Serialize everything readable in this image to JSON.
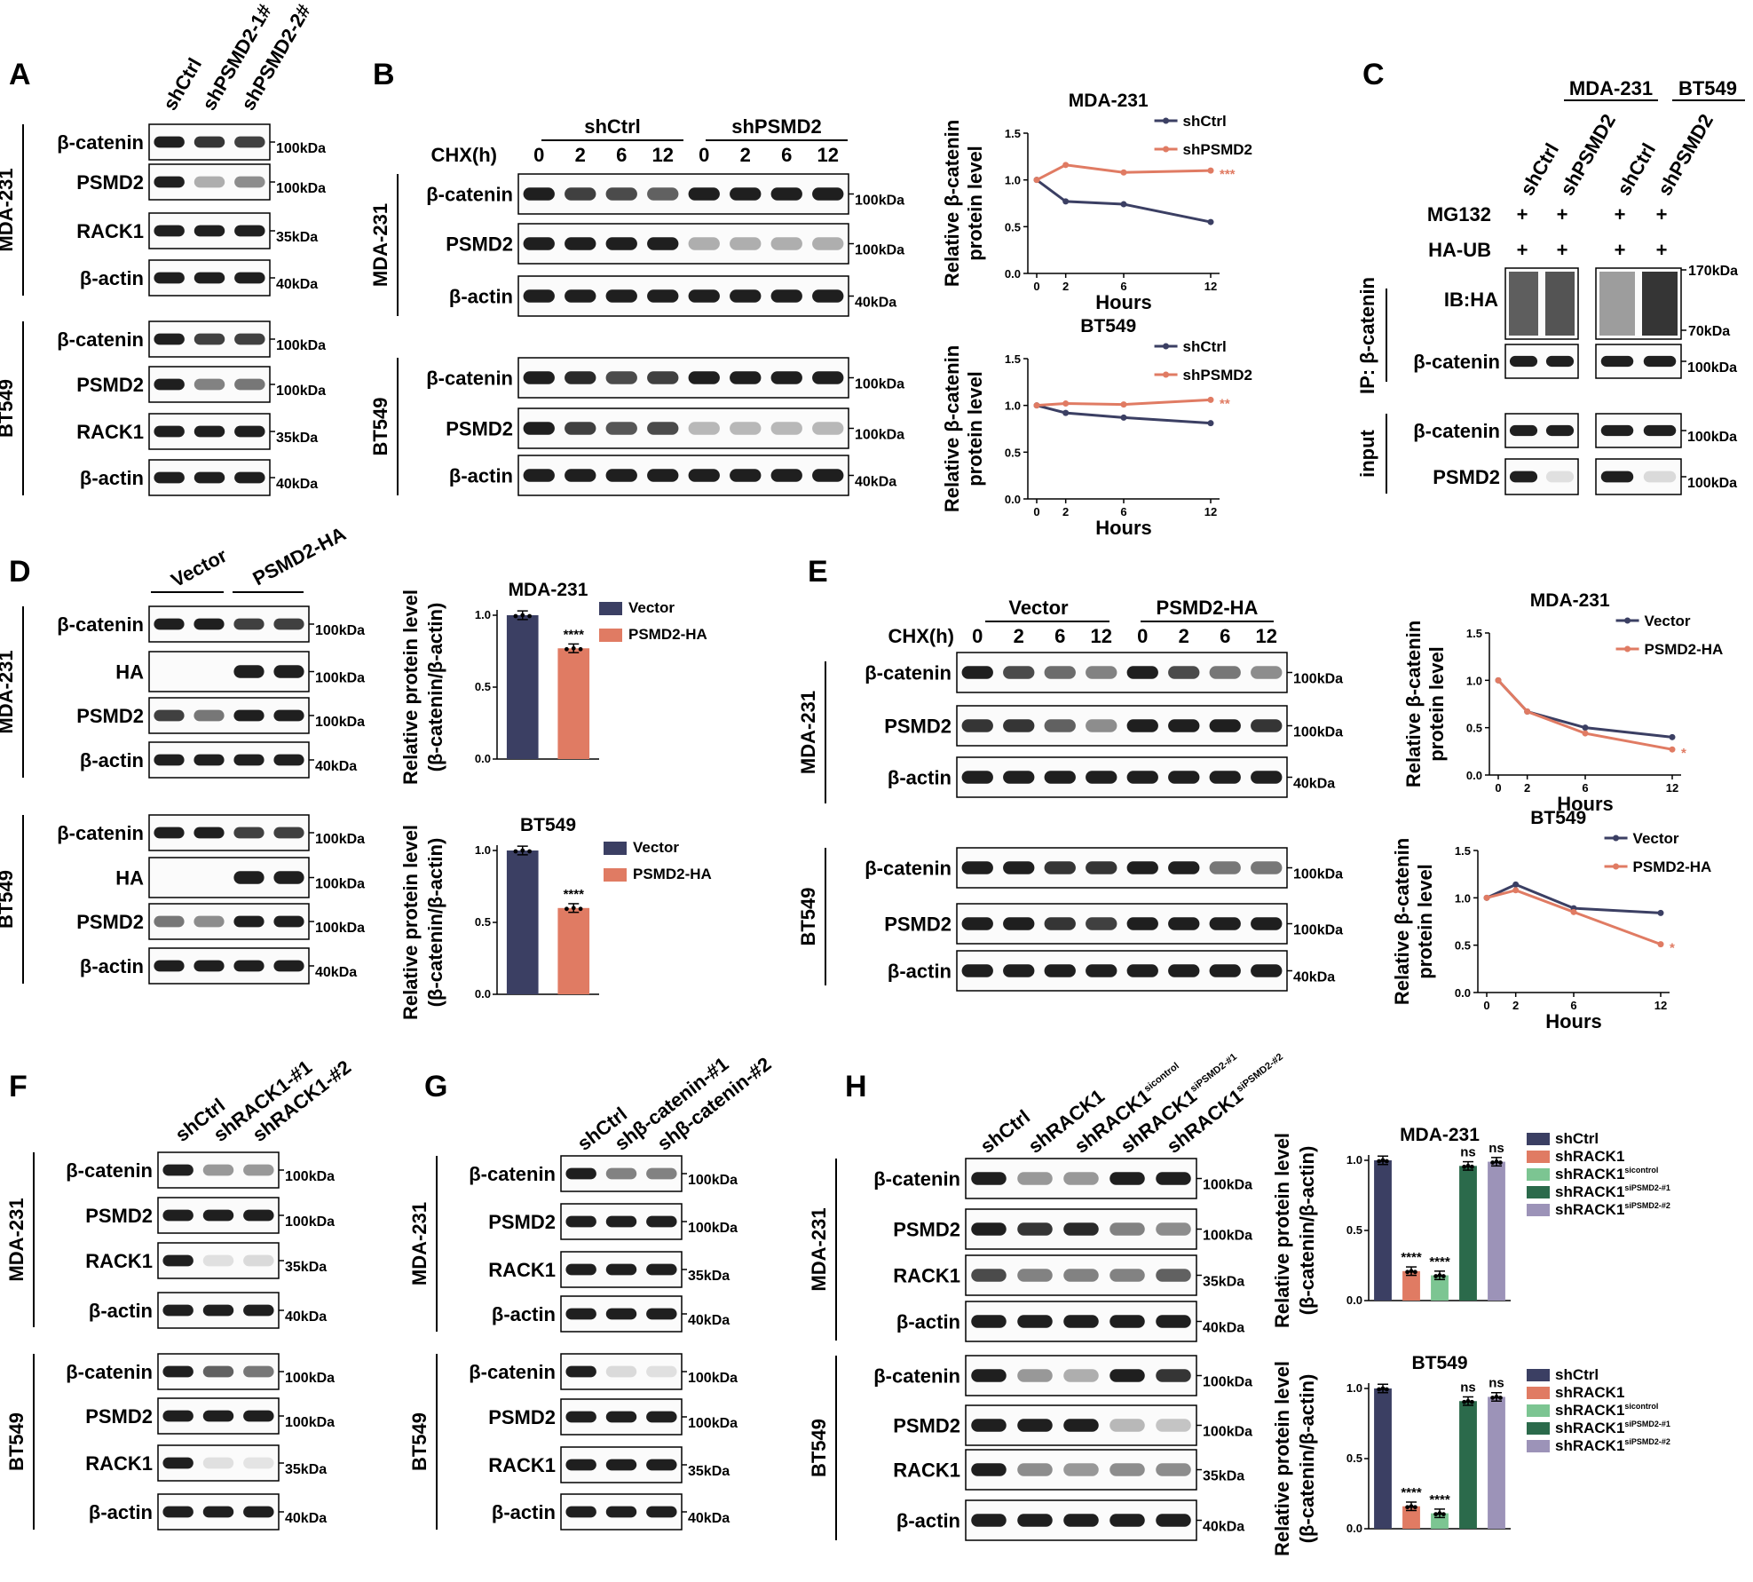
{
  "colors": {
    "navy": "#3b3f63",
    "salmon": "#e07b63",
    "lightgreen": "#7cc592",
    "darkgreen": "#2b6a4b",
    "lavender": "#9c93b8",
    "band": "#1f1f1f"
  },
  "panels": {
    "A": {
      "letter": "A",
      "lanes": [
        "shCtrl",
        "shPSMD2-1#",
        "shPSMD2-2#"
      ],
      "cells": [
        "MDA-231",
        "BT549"
      ],
      "blots": [
        {
          "label": "β-catenin",
          "kda": "100kDa"
        },
        {
          "label": "PSMD2",
          "kda": "100kDa"
        },
        {
          "label": "RACK1",
          "kda": "35kDa"
        },
        {
          "label": "β-actin",
          "kda": "40kDa"
        },
        {
          "label": "β-catenin",
          "kda": "100kDa"
        },
        {
          "label": "PSMD2",
          "kda": "100kDa"
        },
        {
          "label": "RACK1",
          "kda": "35kDa"
        },
        {
          "label": "β-actin",
          "kda": "40kDa"
        }
      ]
    },
    "B": {
      "letter": "B",
      "groups": [
        "shCtrl",
        "shPSMD2"
      ],
      "chx_label": "CHX(h)",
      "times": [
        "0",
        "2",
        "6",
        "12",
        "0",
        "2",
        "6",
        "12"
      ],
      "cells": [
        "MDA-231",
        "BT549"
      ],
      "blots": [
        {
          "label": "β-catenin",
          "kda": "100kDa"
        },
        {
          "label": "PSMD2",
          "kda": "100kDa"
        },
        {
          "label": "β-actin",
          "kda": "40kDa"
        },
        {
          "label": "β-catenin",
          "kda": "100kDa"
        },
        {
          "label": "PSMD2",
          "kda": "100kDa"
        },
        {
          "label": "β-actin",
          "kda": "40kDa"
        }
      ]
    },
    "C": {
      "letter": "C",
      "cell_headers": [
        "MDA-231",
        "BT549"
      ],
      "lanes": [
        "shCtrl",
        "shPSMD2",
        "shCtrl",
        "shPSMD2"
      ],
      "rows": [
        {
          "label": "MG132",
          "marks": [
            "+",
            "+",
            "+",
            "+"
          ]
        },
        {
          "label": "HA-UB",
          "marks": [
            "+",
            "+",
            "+",
            "+"
          ]
        }
      ],
      "ip_label": "IP: β-catenin",
      "input_label": "input",
      "blots": [
        {
          "label": "IB:HA",
          "kda_top": "170kDa",
          "kda_bottom": "70kDa"
        },
        {
          "label": "β-catenin",
          "kda": "100kDa"
        },
        {
          "label": "β-catenin",
          "kda": "100kDa"
        },
        {
          "label": "PSMD2",
          "kda": "100kDa"
        }
      ]
    },
    "D": {
      "letter": "D",
      "groups": [
        "Vector",
        "PSMD2-HA"
      ],
      "cells": [
        "MDA-231",
        "BT549"
      ],
      "blots": [
        {
          "label": "β-catenin",
          "kda": "100kDa"
        },
        {
          "label": "HA",
          "kda": "100kDa"
        },
        {
          "label": "PSMD2",
          "kda": "100kDa"
        },
        {
          "label": "β-actin",
          "kda": "40kDa"
        },
        {
          "label": "β-catenin",
          "kda": "100kDa"
        },
        {
          "label": "HA",
          "kda": "100kDa"
        },
        {
          "label": "PSMD2",
          "kda": "100kDa"
        },
        {
          "label": "β-actin",
          "kda": "40kDa"
        }
      ]
    },
    "E": {
      "letter": "E",
      "groups": [
        "Vector",
        "PSMD2-HA"
      ],
      "chx_label": "CHX(h)",
      "times": [
        "0",
        "2",
        "6",
        "12",
        "0",
        "2",
        "6",
        "12"
      ],
      "cells": [
        "MDA-231",
        "BT549"
      ],
      "blots": [
        {
          "label": "β-catenin",
          "kda": "100kDa"
        },
        {
          "label": "PSMD2",
          "kda": "100kDa"
        },
        {
          "label": "β-actin",
          "kda": "40kDa"
        },
        {
          "label": "β-catenin",
          "kda": "100kDa"
        },
        {
          "label": "PSMD2",
          "kda": "100kDa"
        },
        {
          "label": "β-actin",
          "kda": "40kDa"
        }
      ]
    },
    "F": {
      "letter": "F",
      "lanes": [
        "shCtrl",
        "shRACK1-#1",
        "shRACK1-#2"
      ],
      "cells": [
        "MDA-231",
        "BT549"
      ],
      "blots": [
        {
          "label": "β-catenin",
          "kda": "100kDa"
        },
        {
          "label": "PSMD2",
          "kda": "100kDa"
        },
        {
          "label": "RACK1",
          "kda": "35kDa"
        },
        {
          "label": "β-actin",
          "kda": "40kDa"
        },
        {
          "label": "β-catenin",
          "kda": "100kDa"
        },
        {
          "label": "PSMD2",
          "kda": "100kDa"
        },
        {
          "label": "RACK1",
          "kda": "35kDa"
        },
        {
          "label": "β-actin",
          "kda": "40kDa"
        }
      ]
    },
    "G": {
      "letter": "G",
      "lanes": [
        "shCtrl",
        "shβ-catenin-#1",
        "shβ-catenin-#2"
      ],
      "cells": [
        "MDA-231",
        "BT549"
      ],
      "blots": [
        {
          "label": "β-catenin",
          "kda": "100kDa"
        },
        {
          "label": "PSMD2",
          "kda": "100kDa"
        },
        {
          "label": "RACK1",
          "kda": "35kDa"
        },
        {
          "label": "β-actin",
          "kda": "40kDa"
        },
        {
          "label": "β-catenin",
          "kda": "100kDa"
        },
        {
          "label": "PSMD2",
          "kda": "100kDa"
        },
        {
          "label": "RACK1",
          "kda": "35kDa"
        },
        {
          "label": "β-actin",
          "kda": "40kDa"
        }
      ]
    },
    "H": {
      "letter": "H",
      "lanes": [
        {
          "base": "shCtrl",
          "sup": ""
        },
        {
          "base": "shRACK1",
          "sup": ""
        },
        {
          "base": "shRACK1",
          "sup": "sicontrol"
        },
        {
          "base": "shRACK1",
          "sup": "siPSMD2-#1"
        },
        {
          "base": "shRACK1",
          "sup": "siPSMD2-#2"
        }
      ],
      "cells": [
        "MDA-231",
        "BT549"
      ],
      "blots": [
        {
          "label": "β-catenin",
          "kda": "100kDa"
        },
        {
          "label": "PSMD2",
          "kda": "100kDa"
        },
        {
          "label": "RACK1",
          "kda": "35kDa"
        },
        {
          "label": "β-actin",
          "kda": "40kDa"
        },
        {
          "label": "β-catenin",
          "kda": "100kDa"
        },
        {
          "label": "PSMD2",
          "kda": "100kDa"
        },
        {
          "label": "RACK1",
          "kda": "35kDa"
        },
        {
          "label": "β-actin",
          "kda": "40kDa"
        }
      ]
    }
  },
  "chart_data": [
    {
      "id": "B-MDA",
      "type": "line",
      "title": "MDA-231",
      "xlabel": "Hours",
      "ylabel": [
        "Relative β-catenin",
        "protein level"
      ],
      "x": [
        0,
        2,
        6,
        12
      ],
      "x_tick_labels": [
        "0",
        "2",
        "6",
        "12"
      ],
      "ylim": [
        0,
        1.5
      ],
      "y_ticks": [
        "0.0",
        "0.5",
        "1.0",
        "1.5"
      ],
      "series": [
        {
          "name": "shCtrl",
          "color": "#3b3f63",
          "values": [
            1.0,
            0.77,
            0.74,
            0.55
          ]
        },
        {
          "name": "shPSMD2",
          "color": "#e07b63",
          "values": [
            1.0,
            1.16,
            1.08,
            1.1
          ]
        }
      ],
      "significance": "***",
      "legend_position": "top-right"
    },
    {
      "id": "B-BT",
      "type": "line",
      "title": "BT549",
      "xlabel": "Hours",
      "ylabel": [
        "Relative β-catenin",
        "protein level"
      ],
      "x": [
        0,
        2,
        6,
        12
      ],
      "x_tick_labels": [
        "0",
        "2",
        "6",
        "12"
      ],
      "ylim": [
        0,
        1.5
      ],
      "y_ticks": [
        "0.0",
        "0.5",
        "1.0",
        "1.5"
      ],
      "series": [
        {
          "name": "shCtrl",
          "color": "#3b3f63",
          "values": [
            1.0,
            0.92,
            0.87,
            0.81
          ]
        },
        {
          "name": "shPSMD2",
          "color": "#e07b63",
          "values": [
            1.0,
            1.02,
            1.01,
            1.06
          ]
        }
      ],
      "significance": "**",
      "legend_position": "top-right"
    },
    {
      "id": "D-MDA",
      "type": "bar",
      "title": "MDA-231",
      "ylabel": [
        "Relative protein level",
        "(β-catenin/β-actin)"
      ],
      "categories": [
        "Vector",
        "PSMD2-HA"
      ],
      "values": [
        1.0,
        0.77
      ],
      "colors": [
        "#3b3f63",
        "#e07b63"
      ],
      "ylim": [
        0,
        1.0
      ],
      "y_ticks": [
        "0.0",
        "0.5",
        "1.0"
      ],
      "significance": [
        "",
        "****"
      ],
      "legend_position": "top-right"
    },
    {
      "id": "D-BT",
      "type": "bar",
      "title": "BT549",
      "ylabel": [
        "Relative protein level",
        "(β-catenin/β-actin)"
      ],
      "categories": [
        "Vector",
        "PSMD2-HA"
      ],
      "values": [
        1.0,
        0.6
      ],
      "colors": [
        "#3b3f63",
        "#e07b63"
      ],
      "ylim": [
        0,
        1.0
      ],
      "y_ticks": [
        "0.0",
        "0.5",
        "1.0"
      ],
      "significance": [
        "",
        "****"
      ],
      "legend_position": "top-right"
    },
    {
      "id": "E-MDA",
      "type": "line",
      "title": "MDA-231",
      "xlabel": "Hours",
      "ylabel": [
        "Relative β-catenin",
        "protein level"
      ],
      "x": [
        0,
        2,
        6,
        12
      ],
      "x_tick_labels": [
        "0",
        "2",
        "6",
        "12"
      ],
      "ylim": [
        0,
        1.5
      ],
      "y_ticks": [
        "0.0",
        "0.5",
        "1.0",
        "1.5"
      ],
      "series": [
        {
          "name": "Vector",
          "color": "#3b3f63",
          "values": [
            1.0,
            0.67,
            0.5,
            0.4
          ]
        },
        {
          "name": "PSMD2-HA",
          "color": "#e07b63",
          "values": [
            1.0,
            0.67,
            0.44,
            0.27
          ]
        }
      ],
      "significance": "*",
      "legend_position": "top-right"
    },
    {
      "id": "E-BT",
      "type": "line",
      "title": "BT549",
      "xlabel": "Hours",
      "ylabel": [
        "Relative β-catenin",
        "protein level"
      ],
      "x": [
        0,
        2,
        6,
        12
      ],
      "x_tick_labels": [
        "0",
        "2",
        "6",
        "12"
      ],
      "ylim": [
        0,
        1.5
      ],
      "y_ticks": [
        "0.0",
        "0.5",
        "1.0",
        "1.5"
      ],
      "series": [
        {
          "name": "Vector",
          "color": "#3b3f63",
          "values": [
            1.0,
            1.14,
            0.89,
            0.84
          ]
        },
        {
          "name": "PSMD2-HA",
          "color": "#e07b63",
          "values": [
            1.0,
            1.08,
            0.85,
            0.51
          ]
        }
      ],
      "significance": "*",
      "legend_position": "top-right"
    },
    {
      "id": "H-MDA",
      "type": "bar",
      "title": "MDA-231",
      "ylabel": [
        "Relative protein level",
        "(β-catenin/β-actin)"
      ],
      "categories": [
        "shCtrl",
        "shRACK1",
        "shRACK1 sicontrol",
        "shRACK1 siPSMD2-#1",
        "shRACK1 siPSMD2-#2"
      ],
      "values": [
        1.0,
        0.21,
        0.18,
        0.96,
        0.99
      ],
      "colors": [
        "#3b3f63",
        "#e07b63",
        "#7cc592",
        "#2b6a4b",
        "#9c93b8"
      ],
      "ylim": [
        0,
        1.0
      ],
      "y_ticks": [
        "0.0",
        "0.5",
        "1.0"
      ],
      "significance": [
        "",
        "****",
        "****",
        "ns",
        "ns"
      ],
      "legend_position": "right"
    },
    {
      "id": "H-BT",
      "type": "bar",
      "title": "BT549",
      "ylabel": [
        "Relative protein level",
        "(β-catenin/β-actin)"
      ],
      "categories": [
        "shCtrl",
        "shRACK1",
        "shRACK1 sicontrol",
        "shRACK1 siPSMD2-#1",
        "shRACK1 siPSMD2-#2"
      ],
      "values": [
        1.0,
        0.16,
        0.11,
        0.91,
        0.94
      ],
      "colors": [
        "#3b3f63",
        "#e07b63",
        "#7cc592",
        "#2b6a4b",
        "#9c93b8"
      ],
      "ylim": [
        0,
        1.0
      ],
      "y_ticks": [
        "0.0",
        "0.5",
        "1.0"
      ],
      "significance": [
        "",
        "****",
        "****",
        "ns",
        "ns"
      ],
      "legend_position": "right"
    }
  ]
}
